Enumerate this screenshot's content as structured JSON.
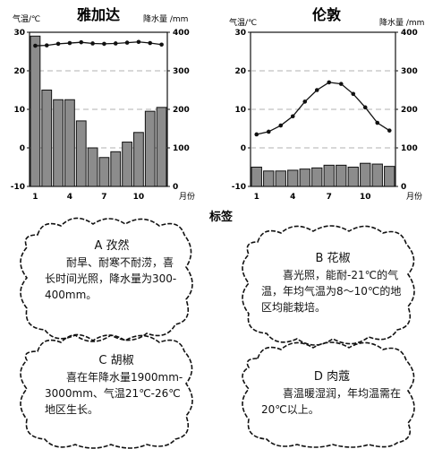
{
  "chart_data": [
    {
      "type": "bar+line",
      "title": "雅加达",
      "categories": [
        1,
        2,
        3,
        4,
        5,
        6,
        7,
        8,
        9,
        10,
        11,
        12
      ],
      "series": [
        {
          "kind": "bar",
          "axis": "precip",
          "values": [
            390,
            250,
            225,
            225,
            170,
            100,
            75,
            90,
            115,
            140,
            195,
            205
          ]
        },
        {
          "kind": "line",
          "axis": "temp",
          "values": [
            26.5,
            26.6,
            27.0,
            27.2,
            27.4,
            27.1,
            27.0,
            27.1,
            27.3,
            27.5,
            27.2,
            26.8
          ]
        }
      ],
      "xticks": [
        "1",
        "4",
        "7",
        "10"
      ],
      "xlabel": "月份",
      "ylabel_left": "气温/℃",
      "ylabel_right": "降水量 /mm",
      "temp_range": [
        -10,
        30
      ],
      "temp_ticks": [
        "30",
        "20",
        "10",
        "0",
        "-10"
      ],
      "precip_range": [
        0,
        400
      ],
      "precip_ticks": [
        "400",
        "300",
        "200",
        "100",
        "0"
      ],
      "grid": "dashed horizontal"
    },
    {
      "type": "bar+line",
      "title": "伦敦",
      "categories": [
        1,
        2,
        3,
        4,
        5,
        6,
        7,
        8,
        9,
        10,
        11,
        12
      ],
      "series": [
        {
          "kind": "bar",
          "axis": "precip",
          "values": [
            50,
            40,
            40,
            42,
            45,
            48,
            55,
            55,
            50,
            60,
            58,
            52
          ]
        },
        {
          "kind": "line",
          "axis": "temp",
          "values": [
            3.5,
            4.2,
            5.8,
            8.2,
            12.0,
            15.0,
            17.0,
            16.6,
            14.0,
            10.5,
            6.5,
            4.5
          ]
        }
      ],
      "xticks": [
        "1",
        "4",
        "7",
        "10"
      ],
      "xlabel": "月份",
      "ylabel_left": "气温/℃",
      "ylabel_right": "降水量 /mm",
      "temp_range": [
        -10,
        30
      ],
      "temp_ticks": [
        "30",
        "20",
        "10",
        "0",
        "-10"
      ],
      "precip_range": [
        0,
        400
      ],
      "precip_ticks": [
        "400",
        "300",
        "200",
        "100",
        "0"
      ],
      "grid": "dashed horizontal"
    }
  ],
  "section_title": "标签",
  "cards": [
    {
      "title": "A 孜然",
      "body": "耐旱、耐寒不耐涝，喜长时间光照，降水量为300-400mm。"
    },
    {
      "title": "B 花椒",
      "body": "喜光照，能耐-21℃的气温，年均气温为8～10℃的地区均能栽培。"
    },
    {
      "title": "C 胡椒",
      "body": "喜在年降水量1900mm-3000mm、气温21℃-26℃地区生长。"
    },
    {
      "title": "D 肉蔻",
      "body": "喜温暖湿润，年均温需在20℃以上。"
    }
  ]
}
